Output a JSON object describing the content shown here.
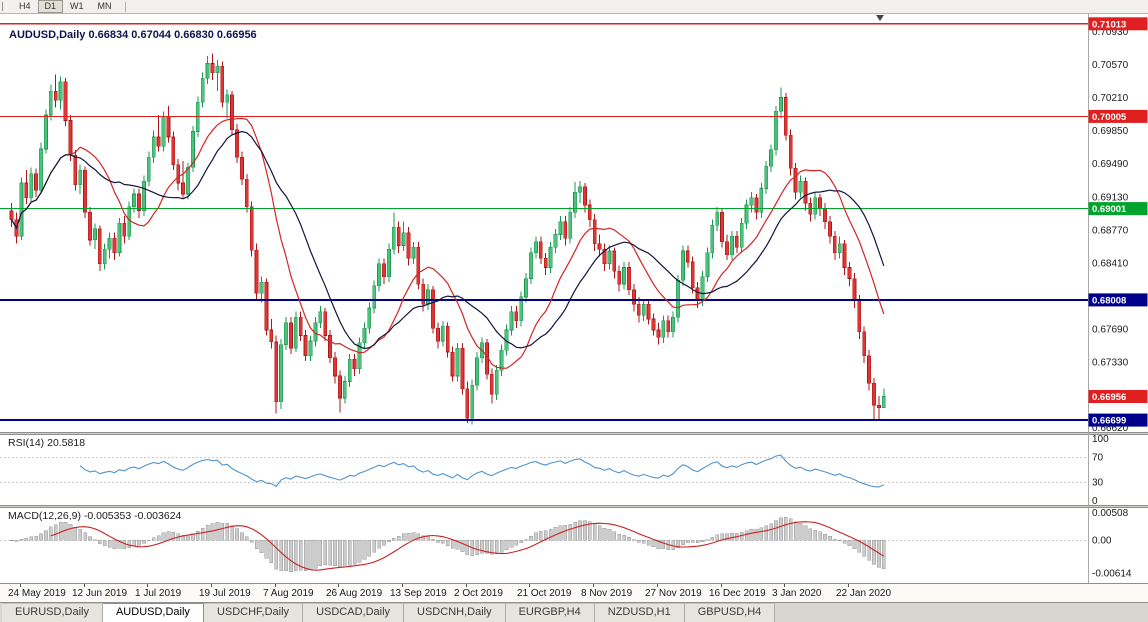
{
  "toolbar": {
    "timeframes": [
      {
        "label": "H4",
        "active": false
      },
      {
        "label": "D1",
        "active": true
      },
      {
        "label": "W1",
        "active": false
      },
      {
        "label": "MN",
        "active": false
      }
    ]
  },
  "chart": {
    "symbol_title": "AUDUSD,Daily",
    "ohlc_text": " 0.66834 0.67044 0.66830 0.66956",
    "price_axis_labels": [
      "0.70930",
      "0.70570",
      "0.70210",
      "0.69850",
      "0.69490",
      "0.69130",
      "0.68770",
      "0.68410",
      "0.67690",
      "0.67330",
      "0.66620"
    ],
    "hlines": [
      {
        "label": "0.71013",
        "value": 0.71013,
        "color": "#e02020",
        "width": 1.2
      },
      {
        "label": "0.70005",
        "value": 0.70005,
        "color": "#e02020",
        "width": 1.2
      },
      {
        "label": "0.69001",
        "value": 0.69001,
        "color": "#00a42c",
        "width": 1.2
      },
      {
        "label": "0.68008",
        "value": 0.68008,
        "color": "#00008b",
        "width": 2
      },
      {
        "label": "0.66699",
        "value": 0.66699,
        "color": "#00008b",
        "width": 2
      }
    ],
    "current_price": {
      "label": "0.66956",
      "value": 0.66956,
      "color": "#e02020"
    },
    "colors": {
      "background": "#ffffff",
      "up_body": "#4ec27b",
      "up_border": "#1b9850",
      "down_body": "#e03535",
      "down_border": "#a81818",
      "axis_text": "#1a1a1a",
      "axis_border": "#a8a8a8"
    },
    "ma": [
      {
        "name": "MA fast",
        "period": 13,
        "color": "#d42424"
      },
      {
        "name": "MA slow",
        "period": 21,
        "color": "#14143c"
      }
    ]
  },
  "indicators": {
    "rsi": {
      "name": "RSI(14)",
      "value": "20.5818",
      "period": 14,
      "levels": [
        "100",
        "70",
        "30",
        "0"
      ],
      "color": "#4f94cd"
    },
    "macd": {
      "name": "MACD(12,26,9)",
      "values": "-0.005353 -0.003624",
      "fast": 12,
      "slow": 26,
      "signal": 9,
      "levels": [
        "0.00508",
        "0.00",
        "-0.00614"
      ],
      "histogram_color": "#cccccc",
      "histogram_border": "#9a9a9a",
      "signal_color": "#cc2222"
    }
  },
  "tabs": [
    {
      "label": "EURUSD,Daily",
      "active": false
    },
    {
      "label": "AUDUSD,Daily",
      "active": true
    },
    {
      "label": "USDCHF,Daily",
      "active": false
    },
    {
      "label": "USDCAD,Daily",
      "active": false
    },
    {
      "label": "USDCNH,Daily",
      "active": false
    },
    {
      "label": "EURGBP,H4",
      "active": false
    },
    {
      "label": "NZDUSD,H1",
      "active": false
    },
    {
      "label": "GBPUSD,H4",
      "active": false
    }
  ],
  "chart_data": {
    "type": "candlestick",
    "symbol": "AUDUSD",
    "timeframe": "Daily",
    "last_bar": {
      "open": 0.66834,
      "high": 0.67044,
      "low": 0.6683,
      "close": 0.66956
    },
    "price_range": [
      0.6657,
      0.7113
    ],
    "x_labels": [
      {
        "label": "24 May 2019",
        "index": 2
      },
      {
        "label": "12 Jun 2019",
        "index": 15
      },
      {
        "label": "1 Jul 2019",
        "index": 28
      },
      {
        "label": "19 Jul 2019",
        "index": 41
      },
      {
        "label": "7 Aug 2019",
        "index": 54
      },
      {
        "label": "26 Aug 2019",
        "index": 67
      },
      {
        "label": "13 Sep 2019",
        "index": 80
      },
      {
        "label": "2 Oct 2019",
        "index": 93
      },
      {
        "label": "21 Oct 2019",
        "index": 106
      },
      {
        "label": "8 Nov 2019",
        "index": 119
      },
      {
        "label": "27 Nov 2019",
        "index": 132
      },
      {
        "label": "16 Dec 2019",
        "index": 145
      },
      {
        "label": "3 Jan 2020",
        "index": 158
      },
      {
        "label": "22 Jan 2020",
        "index": 171
      }
    ],
    "candles": [
      [
        0.6898,
        0.6906,
        0.688,
        0.6888
      ],
      [
        0.6888,
        0.6896,
        0.6862,
        0.687
      ],
      [
        0.687,
        0.6934,
        0.6866,
        0.6928
      ],
      [
        0.6928,
        0.6942,
        0.6905,
        0.6912
      ],
      [
        0.6912,
        0.6945,
        0.6906,
        0.6938
      ],
      [
        0.6938,
        0.6944,
        0.6913,
        0.692
      ],
      [
        0.692,
        0.6972,
        0.6916,
        0.6965
      ],
      [
        0.6965,
        0.7008,
        0.696,
        0.7002
      ],
      [
        0.7002,
        0.7035,
        0.6996,
        0.7028
      ],
      [
        0.7028,
        0.7046,
        0.701,
        0.7018
      ],
      [
        0.7018,
        0.7044,
        0.7008,
        0.7038
      ],
      [
        0.7038,
        0.7042,
        0.699,
        0.6996
      ],
      [
        0.6996,
        0.7002,
        0.6952,
        0.6958
      ],
      [
        0.6958,
        0.6964,
        0.692,
        0.6926
      ],
      [
        0.6926,
        0.6948,
        0.6916,
        0.6942
      ],
      [
        0.6942,
        0.6946,
        0.689,
        0.6896
      ],
      [
        0.6896,
        0.6902,
        0.686,
        0.6866
      ],
      [
        0.6866,
        0.6884,
        0.6856,
        0.6878
      ],
      [
        0.6878,
        0.6882,
        0.6832,
        0.684
      ],
      [
        0.684,
        0.6862,
        0.6834,
        0.6856
      ],
      [
        0.6856,
        0.6874,
        0.6846,
        0.6868
      ],
      [
        0.6868,
        0.6874,
        0.6844,
        0.6852
      ],
      [
        0.6852,
        0.689,
        0.6848,
        0.6884
      ],
      [
        0.6884,
        0.6892,
        0.6862,
        0.687
      ],
      [
        0.687,
        0.6908,
        0.6866,
        0.6902
      ],
      [
        0.6902,
        0.6922,
        0.6896,
        0.6916
      ],
      [
        0.6916,
        0.6922,
        0.689,
        0.6898
      ],
      [
        0.6898,
        0.6936,
        0.6892,
        0.693
      ],
      [
        0.693,
        0.6962,
        0.6924,
        0.6956
      ],
      [
        0.6956,
        0.6985,
        0.695,
        0.6978
      ],
      [
        0.6978,
        0.7002,
        0.6962,
        0.6968
      ],
      [
        0.6968,
        0.7006,
        0.6962,
        0.7
      ],
      [
        0.7,
        0.7012,
        0.6972,
        0.6978
      ],
      [
        0.6978,
        0.6984,
        0.6942,
        0.6948
      ],
      [
        0.6948,
        0.6954,
        0.692,
        0.6928
      ],
      [
        0.6928,
        0.6952,
        0.6912,
        0.6916
      ],
      [
        0.6916,
        0.695,
        0.691,
        0.6945
      ],
      [
        0.6945,
        0.699,
        0.694,
        0.6984
      ],
      [
        0.6984,
        0.7022,
        0.6978,
        0.7016
      ],
      [
        0.7016,
        0.7048,
        0.701,
        0.7042
      ],
      [
        0.7042,
        0.7066,
        0.7036,
        0.7058
      ],
      [
        0.7058,
        0.7069,
        0.704,
        0.7048
      ],
      [
        0.7048,
        0.7062,
        0.7028,
        0.7055
      ],
      [
        0.7055,
        0.706,
        0.701,
        0.7016
      ],
      [
        0.7016,
        0.703,
        0.6998,
        0.7024
      ],
      [
        0.7024,
        0.7028,
        0.698,
        0.6986
      ],
      [
        0.6986,
        0.6992,
        0.695,
        0.6956
      ],
      [
        0.6956,
        0.6962,
        0.6926,
        0.6932
      ],
      [
        0.6932,
        0.6938,
        0.6896,
        0.6902
      ],
      [
        0.6902,
        0.6908,
        0.6848,
        0.6855
      ],
      [
        0.6855,
        0.6862,
        0.6802,
        0.6808
      ],
      [
        0.6808,
        0.6826,
        0.6798,
        0.682
      ],
      [
        0.682,
        0.6824,
        0.6762,
        0.6768
      ],
      [
        0.6768,
        0.678,
        0.6748,
        0.6755
      ],
      [
        0.6755,
        0.6762,
        0.6677,
        0.669
      ],
      [
        0.669,
        0.6758,
        0.6682,
        0.6752
      ],
      [
        0.6752,
        0.6782,
        0.6746,
        0.6776
      ],
      [
        0.6776,
        0.6782,
        0.6742,
        0.6748
      ],
      [
        0.6748,
        0.6788,
        0.6744,
        0.6782
      ],
      [
        0.6782,
        0.6788,
        0.6756,
        0.6762
      ],
      [
        0.6762,
        0.6768,
        0.6734,
        0.674
      ],
      [
        0.674,
        0.6762,
        0.6734,
        0.6756
      ],
      [
        0.6756,
        0.6782,
        0.675,
        0.6776
      ],
      [
        0.6776,
        0.6794,
        0.677,
        0.6788
      ],
      [
        0.6788,
        0.6792,
        0.6756,
        0.6762
      ],
      [
        0.6762,
        0.6768,
        0.6732,
        0.6738
      ],
      [
        0.6738,
        0.6744,
        0.671,
        0.6718
      ],
      [
        0.6718,
        0.6724,
        0.6678,
        0.6694
      ],
      [
        0.6694,
        0.6718,
        0.6688,
        0.6712
      ],
      [
        0.6712,
        0.6742,
        0.6706,
        0.6736
      ],
      [
        0.6736,
        0.6742,
        0.6718,
        0.6726
      ],
      [
        0.6726,
        0.676,
        0.672,
        0.6754
      ],
      [
        0.6754,
        0.6776,
        0.6748,
        0.677
      ],
      [
        0.677,
        0.6798,
        0.6764,
        0.6792
      ],
      [
        0.6792,
        0.6822,
        0.6786,
        0.6816
      ],
      [
        0.6816,
        0.6846,
        0.681,
        0.684
      ],
      [
        0.684,
        0.6846,
        0.6818,
        0.6826
      ],
      [
        0.6826,
        0.6862,
        0.682,
        0.6856
      ],
      [
        0.6856,
        0.6896,
        0.685,
        0.688
      ],
      [
        0.688,
        0.6886,
        0.6852,
        0.686
      ],
      [
        0.686,
        0.6886,
        0.6854,
        0.6874
      ],
      [
        0.6874,
        0.688,
        0.6838,
        0.6846
      ],
      [
        0.6846,
        0.6864,
        0.684,
        0.6858
      ],
      [
        0.6858,
        0.6864,
        0.6812,
        0.6818
      ],
      [
        0.6818,
        0.6824,
        0.6788,
        0.6796
      ],
      [
        0.6796,
        0.6818,
        0.679,
        0.6812
      ],
      [
        0.6812,
        0.6816,
        0.6764,
        0.677
      ],
      [
        0.677,
        0.6776,
        0.6748,
        0.6756
      ],
      [
        0.6756,
        0.6778,
        0.675,
        0.6772
      ],
      [
        0.6772,
        0.6776,
        0.6738,
        0.6744
      ],
      [
        0.6744,
        0.675,
        0.6712,
        0.6718
      ],
      [
        0.6718,
        0.6754,
        0.6712,
        0.6748
      ],
      [
        0.6748,
        0.6754,
        0.6698,
        0.6704
      ],
      [
        0.6704,
        0.6712,
        0.6667,
        0.6672
      ],
      [
        0.6672,
        0.6714,
        0.6665,
        0.6708
      ],
      [
        0.6708,
        0.6744,
        0.6702,
        0.6738
      ],
      [
        0.6738,
        0.676,
        0.6732,
        0.6754
      ],
      [
        0.6754,
        0.6758,
        0.6714,
        0.672
      ],
      [
        0.672,
        0.6726,
        0.6688,
        0.6698
      ],
      [
        0.6698,
        0.673,
        0.6692,
        0.6724
      ],
      [
        0.6724,
        0.6752,
        0.6718,
        0.6746
      ],
      [
        0.6746,
        0.6774,
        0.674,
        0.6768
      ],
      [
        0.6768,
        0.6794,
        0.6762,
        0.6788
      ],
      [
        0.6788,
        0.6794,
        0.677,
        0.6778
      ],
      [
        0.6778,
        0.681,
        0.6772,
        0.6804
      ],
      [
        0.6804,
        0.683,
        0.6798,
        0.6824
      ],
      [
        0.6824,
        0.6858,
        0.6818,
        0.6852
      ],
      [
        0.6852,
        0.687,
        0.6846,
        0.6864
      ],
      [
        0.6864,
        0.687,
        0.684,
        0.6846
      ],
      [
        0.6846,
        0.6852,
        0.6828,
        0.6836
      ],
      [
        0.6836,
        0.6864,
        0.683,
        0.6858
      ],
      [
        0.6858,
        0.6878,
        0.6852,
        0.6872
      ],
      [
        0.6872,
        0.6892,
        0.6866,
        0.6886
      ],
      [
        0.6886,
        0.6892,
        0.686,
        0.6868
      ],
      [
        0.6868,
        0.6902,
        0.6862,
        0.6896
      ],
      [
        0.6896,
        0.6929,
        0.689,
        0.6918
      ],
      [
        0.6918,
        0.693,
        0.6906,
        0.6924
      ],
      [
        0.6924,
        0.6928,
        0.6896,
        0.6904
      ],
      [
        0.6904,
        0.691,
        0.688,
        0.6888
      ],
      [
        0.6888,
        0.6894,
        0.6854,
        0.6862
      ],
      [
        0.6862,
        0.6872,
        0.6848,
        0.6856
      ],
      [
        0.6856,
        0.6862,
        0.6832,
        0.684
      ],
      [
        0.684,
        0.686,
        0.6834,
        0.6854
      ],
      [
        0.6854,
        0.6858,
        0.6824,
        0.6832
      ],
      [
        0.6832,
        0.6838,
        0.681,
        0.6818
      ],
      [
        0.6818,
        0.6842,
        0.6812,
        0.6836
      ],
      [
        0.6836,
        0.6842,
        0.6806,
        0.6812
      ],
      [
        0.6812,
        0.6818,
        0.6788,
        0.6796
      ],
      [
        0.6796,
        0.6804,
        0.6776,
        0.6784
      ],
      [
        0.6784,
        0.6802,
        0.6778,
        0.6796
      ],
      [
        0.6796,
        0.6802,
        0.6774,
        0.678
      ],
      [
        0.678,
        0.6786,
        0.6762,
        0.6768
      ],
      [
        0.6768,
        0.6776,
        0.6752,
        0.676
      ],
      [
        0.676,
        0.6784,
        0.6754,
        0.6778
      ],
      [
        0.6778,
        0.6784,
        0.676,
        0.6766
      ],
      [
        0.6766,
        0.6788,
        0.676,
        0.6782
      ],
      [
        0.6782,
        0.6828,
        0.6776,
        0.6822
      ],
      [
        0.6822,
        0.686,
        0.6816,
        0.6854
      ],
      [
        0.6854,
        0.686,
        0.6836,
        0.6842
      ],
      [
        0.6842,
        0.6848,
        0.6808,
        0.6814
      ],
      [
        0.6814,
        0.682,
        0.6792,
        0.68
      ],
      [
        0.68,
        0.6832,
        0.6794,
        0.6826
      ],
      [
        0.6826,
        0.6858,
        0.682,
        0.6852
      ],
      [
        0.6852,
        0.6888,
        0.6846,
        0.6882
      ],
      [
        0.6882,
        0.6902,
        0.6876,
        0.6896
      ],
      [
        0.6896,
        0.69,
        0.6858,
        0.6864
      ],
      [
        0.6864,
        0.6872,
        0.6844,
        0.685
      ],
      [
        0.685,
        0.6876,
        0.6844,
        0.687
      ],
      [
        0.687,
        0.6876,
        0.6852,
        0.6858
      ],
      [
        0.6858,
        0.689,
        0.6852,
        0.6884
      ],
      [
        0.6884,
        0.691,
        0.6878,
        0.6904
      ],
      [
        0.6904,
        0.6918,
        0.6896,
        0.6912
      ],
      [
        0.6912,
        0.6916,
        0.6888,
        0.6896
      ],
      [
        0.6896,
        0.6928,
        0.689,
        0.6922
      ],
      [
        0.6922,
        0.6952,
        0.6916,
        0.6946
      ],
      [
        0.6946,
        0.697,
        0.694,
        0.6964
      ],
      [
        0.6964,
        0.7012,
        0.6958,
        0.7006
      ],
      [
        0.7006,
        0.7032,
        0.6998,
        0.7021
      ],
      [
        0.7021,
        0.7026,
        0.6974,
        0.698
      ],
      [
        0.698,
        0.6986,
        0.6936,
        0.6944
      ],
      [
        0.6944,
        0.695,
        0.691,
        0.6918
      ],
      [
        0.6918,
        0.6936,
        0.6912,
        0.693
      ],
      [
        0.693,
        0.6934,
        0.6898,
        0.6906
      ],
      [
        0.6906,
        0.6912,
        0.6886,
        0.6894
      ],
      [
        0.6894,
        0.6918,
        0.6888,
        0.6912
      ],
      [
        0.6912,
        0.6916,
        0.6892,
        0.69
      ],
      [
        0.69,
        0.6906,
        0.6878,
        0.6886
      ],
      [
        0.6886,
        0.6892,
        0.6862,
        0.687
      ],
      [
        0.687,
        0.6876,
        0.6844,
        0.6852
      ],
      [
        0.6852,
        0.687,
        0.6846,
        0.6862
      ],
      [
        0.6862,
        0.6866,
        0.6828,
        0.6836
      ],
      [
        0.6836,
        0.6842,
        0.6816,
        0.6824
      ],
      [
        0.6824,
        0.683,
        0.6792,
        0.68
      ],
      [
        0.68,
        0.6806,
        0.6758,
        0.6766
      ],
      [
        0.6766,
        0.6772,
        0.6732,
        0.674
      ],
      [
        0.674,
        0.6746,
        0.6702,
        0.671
      ],
      [
        0.671,
        0.6716,
        0.667,
        0.6686
      ],
      [
        0.6686,
        0.6696,
        0.6671,
        0.66834
      ],
      [
        0.66834,
        0.67044,
        0.6683,
        0.66956
      ]
    ]
  }
}
